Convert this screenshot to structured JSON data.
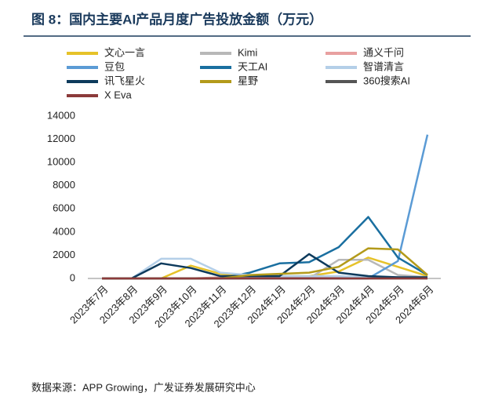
{
  "chart_data": {
    "type": "line",
    "title": "图 8：国内主要AI产品月度广告投放金额（万元）",
    "source": "数据来源：APP Growing，广发证券发展研究中心",
    "categories": [
      "2023年7月",
      "2023年8月",
      "2023年9月",
      "2023年10月",
      "2023年11月",
      "2023年12月",
      "2024年1月",
      "2024年2月",
      "2024年3月",
      "2024年4月",
      "2024年5月",
      "2024年6月"
    ],
    "series": [
      {
        "name": "文心一言",
        "color": "#e6c229",
        "values": [
          0,
          0,
          0,
          1100,
          400,
          200,
          200,
          200,
          600,
          1800,
          1000,
          200
        ]
      },
      {
        "name": "Kimi",
        "color": "#b8b8b8",
        "values": [
          0,
          0,
          0,
          0,
          0,
          0,
          0,
          0,
          1600,
          1600,
          300,
          100
        ]
      },
      {
        "name": "通义千问",
        "color": "#e8a0a0",
        "values": [
          0,
          0,
          0,
          0,
          100,
          100,
          100,
          100,
          100,
          100,
          100,
          100
        ]
      },
      {
        "name": "豆包",
        "color": "#5b9bd5",
        "values": [
          0,
          0,
          0,
          0,
          0,
          0,
          0,
          0,
          0,
          0,
          1500,
          12400
        ]
      },
      {
        "name": "天工AI",
        "color": "#1a6fa0",
        "values": [
          0,
          0,
          0,
          0,
          0,
          500,
          1300,
          1400,
          2700,
          5300,
          1800,
          300
        ]
      },
      {
        "name": "智谱清言",
        "color": "#b4cfe8",
        "values": [
          0,
          0,
          1700,
          1700,
          500,
          300,
          200,
          200,
          200,
          100,
          100,
          100
        ]
      },
      {
        "name": "讯飞星火",
        "color": "#0d3a5c",
        "values": [
          0,
          0,
          1300,
          900,
          200,
          200,
          200,
          2100,
          500,
          200,
          100,
          100
        ]
      },
      {
        "name": "星野",
        "color": "#b39a1a",
        "values": [
          0,
          0,
          0,
          0,
          0,
          300,
          400,
          500,
          1000,
          2600,
          2500,
          300
        ]
      },
      {
        "name": "360搜索AI",
        "color": "#555555",
        "values": [
          0,
          0,
          0,
          0,
          0,
          0,
          0,
          0,
          0,
          0,
          0,
          0
        ]
      },
      {
        "name": "X Eva",
        "color": "#8b3a3a",
        "values": [
          0,
          0,
          0,
          0,
          0,
          0,
          0,
          0,
          0,
          0,
          0,
          0
        ]
      }
    ],
    "ylim": [
      0,
      14000
    ],
    "yticks": [
      0,
      2000,
      4000,
      6000,
      8000,
      10000,
      12000,
      14000
    ],
    "grid": false
  }
}
